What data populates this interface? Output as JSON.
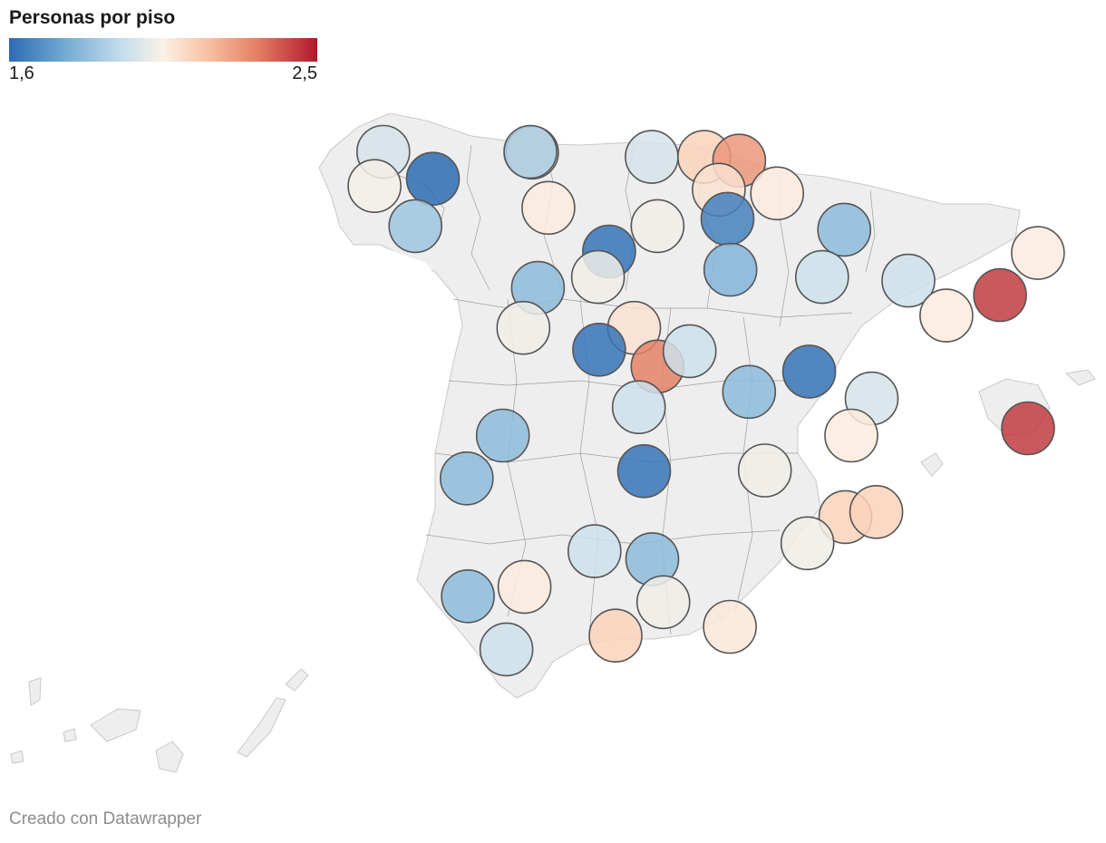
{
  "legend": {
    "title": "Personas por piso",
    "min_label": "1,6",
    "max_label": "2,5",
    "min_value": 1.6,
    "max_value": 2.5,
    "gradient": [
      "#2c6bb1",
      "#73aad3",
      "#c2dcec",
      "#fbf1e6",
      "#f8c2a5",
      "#e58266",
      "#b0182d"
    ]
  },
  "footer": {
    "credit": "Creado con Datawrapper"
  },
  "map": {
    "land_color": "#eeeeee",
    "border_color": "#9e9e9e",
    "circle_stroke": "#555555"
  },
  "chart_data": {
    "type": "symbol-map",
    "region": "España (provincias)",
    "metric": "Personas por piso",
    "color_domain": [
      1.6,
      2.5
    ],
    "points": [
      {
        "lon": -8.4,
        "lat": 43.37,
        "value": 1.95
      },
      {
        "lon": -8.55,
        "lat": 42.9,
        "value": 2.03
      },
      {
        "lon": -7.55,
        "lat": 43.0,
        "value": 1.6
      },
      {
        "lon": -7.85,
        "lat": 42.35,
        "value": 1.83
      },
      {
        "lon": -5.85,
        "lat": 43.36,
        "value": 2.1
      },
      {
        "lon": -5.88,
        "lat": 43.37,
        "value": 1.85
      },
      {
        "lon": -5.57,
        "lat": 42.6,
        "value": 2.07
      },
      {
        "lon": -3.8,
        "lat": 43.3,
        "value": 1.95
      },
      {
        "lon": -2.9,
        "lat": 43.3,
        "value": 2.15
      },
      {
        "lon": -2.3,
        "lat": 43.25,
        "value": 2.3
      },
      {
        "lon": -2.65,
        "lat": 42.85,
        "value": 2.1
      },
      {
        "lon": -1.65,
        "lat": 42.8,
        "value": 2.07
      },
      {
        "lon": -4.53,
        "lat": 42.0,
        "value": 1.62
      },
      {
        "lon": -3.7,
        "lat": 42.35,
        "value": 2.02
      },
      {
        "lon": -2.5,
        "lat": 42.45,
        "value": 1.65
      },
      {
        "lon": -0.5,
        "lat": 42.3,
        "value": 1.8
      },
      {
        "lon": 0.6,
        "lat": 41.6,
        "value": 1.93
      },
      {
        "lon": 2.17,
        "lat": 41.4,
        "value": 2.45
      },
      {
        "lon": 2.82,
        "lat": 41.98,
        "value": 2.07
      },
      {
        "lon": -5.75,
        "lat": 41.5,
        "value": 1.8
      },
      {
        "lon": -4.72,
        "lat": 41.65,
        "value": 2.02
      },
      {
        "lon": -4.1,
        "lat": 40.95,
        "value": 2.1
      },
      {
        "lon": -2.45,
        "lat": 41.75,
        "value": 1.78
      },
      {
        "lon": -0.88,
        "lat": 41.65,
        "value": 1.93
      },
      {
        "lon": 1.25,
        "lat": 41.12,
        "value": 2.07
      },
      {
        "lon": -6.0,
        "lat": 40.95,
        "value": 2.02
      },
      {
        "lon": -4.7,
        "lat": 40.65,
        "value": 1.62
      },
      {
        "lon": -3.7,
        "lat": 40.42,
        "value": 2.35
      },
      {
        "lon": -3.15,
        "lat": 40.63,
        "value": 1.93
      },
      {
        "lon": -1.1,
        "lat": 40.35,
        "value": 1.62
      },
      {
        "lon": -0.03,
        "lat": 39.98,
        "value": 1.95
      },
      {
        "lon": 2.65,
        "lat": 39.57,
        "value": 2.45
      },
      {
        "lon": -6.35,
        "lat": 39.47,
        "value": 1.8
      },
      {
        "lon": -4.02,
        "lat": 39.86,
        "value": 1.93
      },
      {
        "lon": -2.13,
        "lat": 40.07,
        "value": 1.8
      },
      {
        "lon": -0.38,
        "lat": 39.47,
        "value": 2.07
      },
      {
        "lon": -6.97,
        "lat": 38.88,
        "value": 1.8
      },
      {
        "lon": -3.93,
        "lat": 38.98,
        "value": 1.62
      },
      {
        "lon": -1.86,
        "lat": 38.99,
        "value": 2.02
      },
      {
        "lon": -0.48,
        "lat": 38.35,
        "value": 2.15
      },
      {
        "lon": 0.05,
        "lat": 38.42,
        "value": 2.15
      },
      {
        "lon": -4.78,
        "lat": 37.88,
        "value": 1.93
      },
      {
        "lon": -3.79,
        "lat": 37.77,
        "value": 1.8
      },
      {
        "lon": -1.13,
        "lat": 37.99,
        "value": 2.02
      },
      {
        "lon": -6.95,
        "lat": 37.26,
        "value": 1.8
      },
      {
        "lon": -5.98,
        "lat": 37.39,
        "value": 2.07
      },
      {
        "lon": -3.6,
        "lat": 37.18,
        "value": 2.02
      },
      {
        "lon": -2.46,
        "lat": 36.84,
        "value": 2.08
      },
      {
        "lon": -4.42,
        "lat": 36.72,
        "value": 2.15
      },
      {
        "lon": -6.29,
        "lat": 36.53,
        "value": 1.93
      }
    ]
  }
}
